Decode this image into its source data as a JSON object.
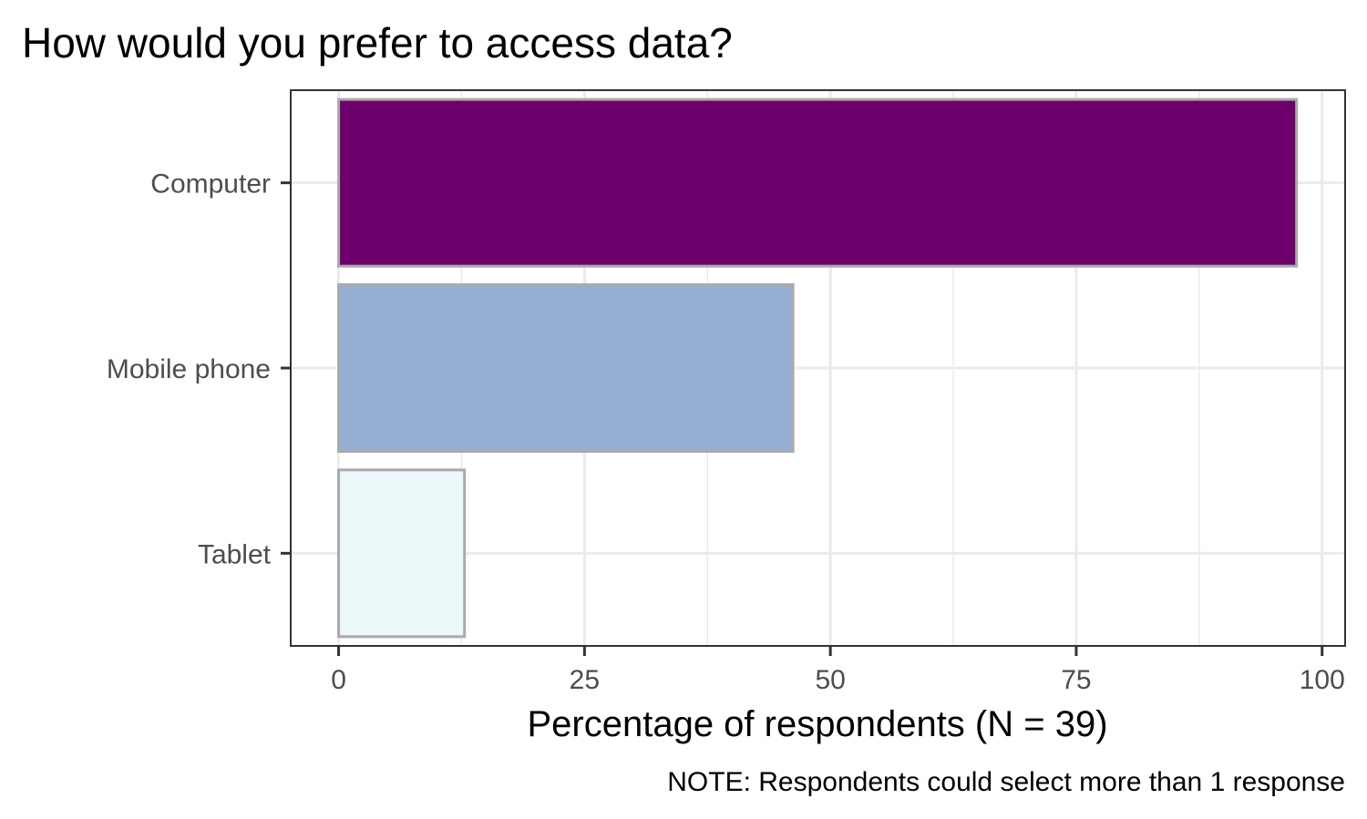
{
  "chart_data": {
    "type": "bar",
    "orientation": "horizontal",
    "title": "How would you prefer to access data?",
    "xlabel": "Percentage of respondents (N = 39)",
    "ylabel": "",
    "caption": "NOTE: Respondents could select more than 1 response",
    "categories": [
      "Computer",
      "Mobile phone",
      "Tablet"
    ],
    "values": [
      97.4,
      46.2,
      12.8
    ],
    "colors": [
      "#6e016b",
      "#97aed4",
      "#edf8fb"
    ],
    "bar_outline_color": "#aaaaaa",
    "xlim": [
      -4.87,
      102.34
    ],
    "xticks": [
      0,
      25,
      50,
      75,
      100
    ],
    "xtick_labels": [
      "0",
      "25",
      "50",
      "75",
      "100"
    ],
    "grid": true,
    "legend": "none"
  }
}
